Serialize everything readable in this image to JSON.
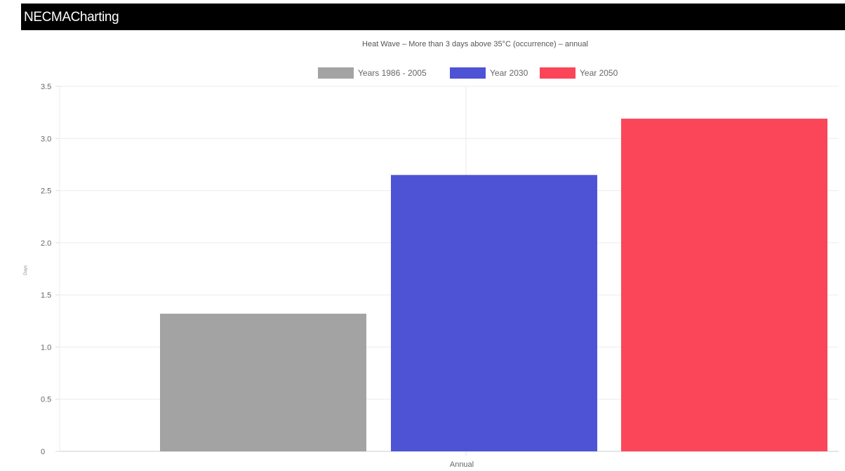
{
  "app": {
    "title": "NECMACharting"
  },
  "chart_data": {
    "type": "bar",
    "title": "Heat Wave – More than 3 days above 35°C (occurrence) – annual",
    "categories": [
      "Annual"
    ],
    "series": [
      {
        "name": "Years 1986 - 2005",
        "values": [
          1.32
        ],
        "color": "#a3a3a3"
      },
      {
        "name": "Year 2030",
        "values": [
          2.65
        ],
        "color": "#4e53d6"
      },
      {
        "name": "Year 2050",
        "values": [
          3.19
        ],
        "color": "#fb4659"
      }
    ],
    "xlabel": "",
    "ylabel": "Days",
    "ylim": [
      0,
      3.5
    ],
    "yticks": [
      "0",
      "0.5",
      "1.0",
      "1.5",
      "2.0",
      "2.5",
      "3.0",
      "3.5"
    ],
    "ytick_values": [
      0,
      0.5,
      1.0,
      1.5,
      2.0,
      2.5,
      3.0,
      3.5
    ],
    "grid": true,
    "legend_position": "top"
  }
}
